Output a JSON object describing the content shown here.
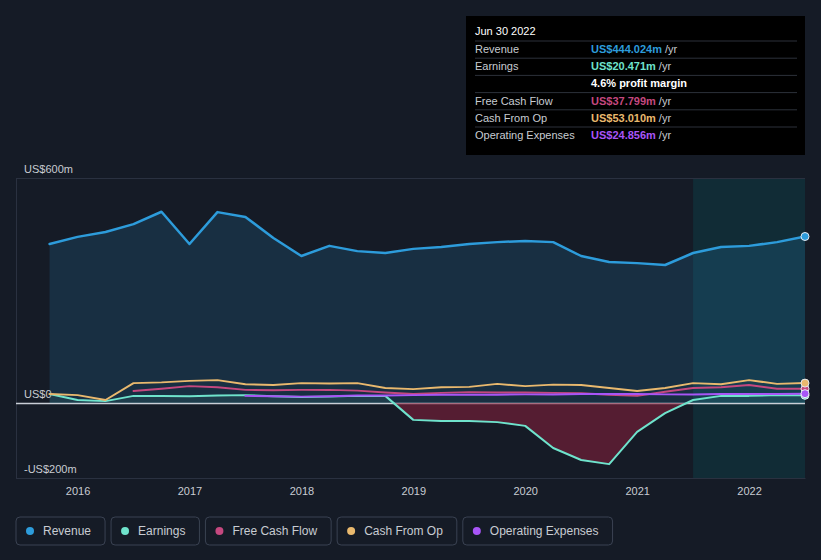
{
  "chart_data": {
    "type": "line",
    "x": [
      2015.75,
      2016,
      2016.25,
      2016.5,
      2016.75,
      2017,
      2017.25,
      2017.5,
      2017.75,
      2018,
      2018.25,
      2018.5,
      2018.75,
      2019,
      2019.25,
      2019.5,
      2019.75,
      2020,
      2020.25,
      2020.5,
      2020.75,
      2021,
      2021.25,
      2021.5,
      2021.75,
      2022,
      2022.25,
      2022.5
    ],
    "xlim": [
      2015.45,
      2022.5
    ],
    "xticks": [
      2016,
      2017,
      2018,
      2019,
      2020,
      2021,
      2022
    ],
    "ylim": [
      -200,
      600
    ],
    "yticks": [
      {
        "value": -200,
        "label": "-US$200m"
      },
      {
        "value": 0,
        "label": "US$0"
      },
      {
        "value": 600,
        "label": "US$600m"
      }
    ],
    "grid": true,
    "legend": "bottom-left",
    "shaded_x": [
      2021.5,
      2022.5
    ],
    "series": [
      {
        "name": "Revenue",
        "color": "#2d9cdb",
        "type": "area",
        "values": [
          424,
          443,
          456,
          477,
          510,
          424,
          509,
          496,
          440,
          392,
          419,
          405,
          400,
          411,
          416,
          424,
          429,
          432,
          429,
          392,
          376,
          373,
          368,
          400,
          416,
          419,
          429,
          444.024
        ]
      },
      {
        "name": "Earnings",
        "color": "#6fe3cc",
        "type": "area",
        "values": [
          24,
          8,
          5,
          19,
          19,
          18,
          20,
          21,
          18,
          16,
          17,
          19,
          19,
          -45,
          -48,
          -48,
          -51,
          -61,
          -120,
          -152,
          -163,
          -77,
          -27,
          8,
          19,
          19,
          21,
          20.471
        ]
      },
      {
        "name": "Free Cash Flow",
        "color": "#c5487f",
        "type": "line",
        "values": [
          null,
          null,
          null,
          32,
          38,
          45,
          42,
          35,
          34,
          35,
          35,
          33,
          28,
          24,
          27,
          29,
          28,
          28,
          27,
          26,
          22,
          19,
          30,
          40,
          42,
          48,
          38,
          37.799
        ]
      },
      {
        "name": "Cash From Op",
        "color": "#e9b96e",
        "type": "line",
        "values": [
          24,
          21,
          8,
          53,
          55,
          59,
          61,
          50,
          48,
          53,
          52,
          53,
          40,
          37,
          42,
          43,
          51,
          45,
          49,
          48,
          40,
          32,
          40,
          53,
          50,
          61,
          51,
          53.01
        ]
      },
      {
        "name": "Operating Expenses",
        "color": "#a855f7",
        "type": "line",
        "values": [
          null,
          null,
          null,
          null,
          null,
          null,
          null,
          19,
          18,
          17,
          18,
          20,
          20,
          21,
          22,
          22,
          22,
          23,
          23,
          24,
          24,
          24,
          23,
          23,
          24,
          24,
          24,
          24.856
        ]
      }
    ],
    "annotations": {
      "tooltip": {
        "date": "Jun 30 2022",
        "rows": [
          {
            "label": "Revenue",
            "value": "US$444.024m",
            "unit": "/yr"
          },
          {
            "label": "Earnings",
            "value": "US$20.471m",
            "unit": "/yr"
          },
          {
            "value": "4.6% profit margin"
          },
          {
            "label": "Free Cash Flow",
            "value": "US$37.799m",
            "unit": "/yr"
          },
          {
            "label": "Cash From Op",
            "value": "US$53.010m",
            "unit": "/yr"
          },
          {
            "label": "Operating Expenses",
            "value": "US$24.856m",
            "unit": "/yr"
          }
        ]
      }
    }
  }
}
